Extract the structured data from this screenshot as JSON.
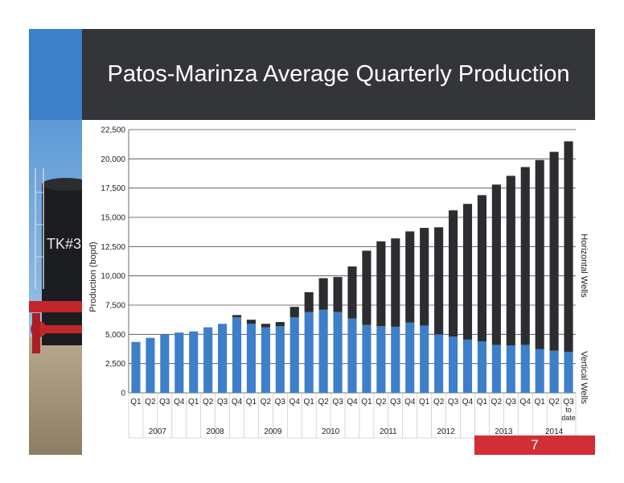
{
  "slide": {
    "title": "Patos-Marinza Average Quarterly Production",
    "page_number": "7",
    "colors": {
      "accent_blue": "#3e7fc9",
      "dark_band": "#333538",
      "red_bar": "#d12e35"
    }
  },
  "chart_data": {
    "type": "bar",
    "stacked": true,
    "ylabel": "Production (bopd)",
    "ylim": [
      0,
      22500
    ],
    "yticks": [
      0,
      2500,
      5000,
      7500,
      10000,
      12500,
      15000,
      17500,
      20000,
      22500
    ],
    "ytick_labels": [
      "0",
      "2,500",
      "5,000",
      "7,500",
      "10,000",
      "12,500",
      "15,000",
      "17,500",
      "20,000",
      "22,500"
    ],
    "grid": true,
    "categories": [
      "Q1",
      "Q2",
      "Q3",
      "Q4",
      "Q1",
      "Q2",
      "Q3",
      "Q4",
      "Q1",
      "Q2",
      "Q3",
      "Q4",
      "Q1",
      "Q2",
      "Q3",
      "Q4",
      "Q1",
      "Q2",
      "Q3",
      "Q4",
      "Q1",
      "Q2",
      "Q3",
      "Q4",
      "Q1",
      "Q2",
      "Q3",
      "Q4",
      "Q1",
      "Q2",
      "Q3 to date"
    ],
    "years": [
      {
        "label": "2007",
        "count": 4
      },
      {
        "label": "2008",
        "count": 4
      },
      {
        "label": "2009",
        "count": 4
      },
      {
        "label": "2010",
        "count": 4
      },
      {
        "label": "2011",
        "count": 4
      },
      {
        "label": "2012",
        "count": 4
      },
      {
        "label": "2013",
        "count": 4
      },
      {
        "label": "2014",
        "count": 3
      }
    ],
    "series": [
      {
        "name": "Vertical Wells",
        "color": "#3e7fc9",
        "values": [
          4350,
          4700,
          5000,
          5150,
          5250,
          5600,
          5900,
          6450,
          5900,
          5600,
          5700,
          6450,
          6900,
          7100,
          6900,
          6350,
          5800,
          5700,
          5650,
          6000,
          5750,
          5000,
          4800,
          4550,
          4400,
          4100,
          4050,
          4100,
          3750,
          3600,
          3500
        ]
      },
      {
        "name": "Horizontal Wells",
        "color": "#2c2d30",
        "values": [
          0,
          0,
          0,
          0,
          0,
          0,
          0,
          200,
          350,
          300,
          350,
          900,
          1700,
          2700,
          3000,
          4450,
          6350,
          7250,
          7550,
          7800,
          8350,
          9150,
          10800,
          11600,
          12500,
          13700,
          14500,
          15200,
          16150,
          17000,
          18000
        ]
      }
    ]
  }
}
